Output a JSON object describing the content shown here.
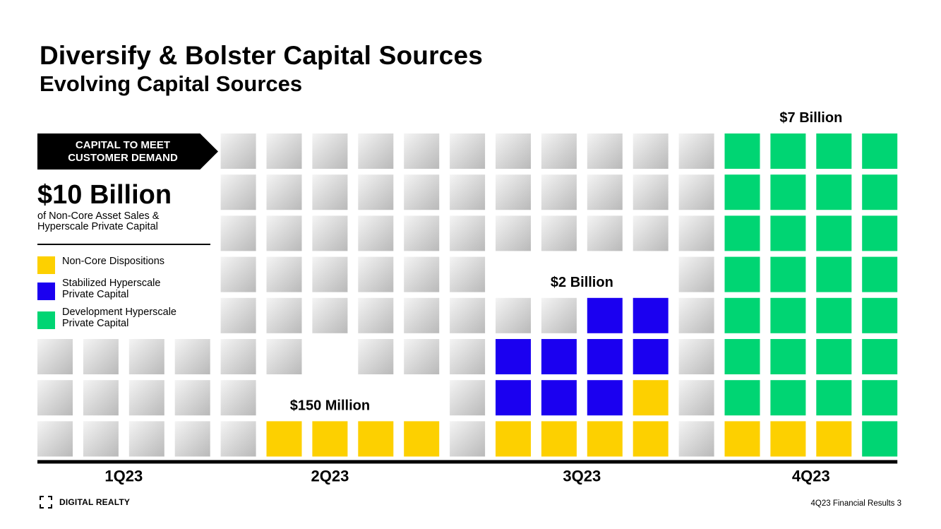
{
  "slide": {
    "title": "Diversify & Bolster Capital Sources",
    "subtitle": "Evolving Capital Sources"
  },
  "callout": {
    "badge_text": "CAPITAL TO MEET\nCUSTOMER DEMAND",
    "amount": "$10 Billion",
    "description_line1": "of Non-Core Asset Sales &",
    "description_line2": "Hyperscale Private Capital"
  },
  "legend": [
    {
      "label_line1": "Non-Core Dispositions",
      "label_line2": "",
      "color": "#FDD000"
    },
    {
      "label_line1": "Stabilized Hyperscale",
      "label_line2": "Private Capital",
      "color": "#1B00F0"
    },
    {
      "label_line1": "Development Hyperscale",
      "label_line2": "Private Capital",
      "color": "#00D573"
    }
  ],
  "chart_data": {
    "type": "waffle",
    "title": "Evolving Capital Sources",
    "rows": 8,
    "columns": 19,
    "colors": {
      "yellow": "#FDD000",
      "blue": "#1B00F0",
      "green": "#00D573",
      "gray_light": "#f4f4f4",
      "gray_dark": "#b9b9b9",
      "axis": "#000000"
    },
    "quarters": [
      {
        "label": "1Q23",
        "columns": [
          0,
          3
        ]
      },
      {
        "label": "2Q23",
        "columns": [
          4,
          8
        ]
      },
      {
        "label": "3Q23",
        "columns": [
          9,
          14
        ]
      },
      {
        "label": "4Q23",
        "columns": [
          15,
          18
        ]
      }
    ],
    "annotations": [
      {
        "text": "$150 Million",
        "quarter": "2Q23"
      },
      {
        "text": "$2 Billion",
        "quarter": "3Q23"
      },
      {
        "text": "$7 Billion",
        "quarter": "4Q23"
      }
    ],
    "tiles": {
      "yellow": [
        [
          7,
          5
        ],
        [
          7,
          6
        ],
        [
          7,
          7
        ],
        [
          7,
          8
        ],
        [
          7,
          10
        ],
        [
          7,
          11
        ],
        [
          7,
          12
        ],
        [
          7,
          13
        ],
        [
          6,
          13
        ],
        [
          7,
          15
        ],
        [
          7,
          16
        ],
        [
          7,
          17
        ]
      ],
      "blue": [
        [
          4,
          12
        ],
        [
          4,
          13
        ],
        [
          5,
          10
        ],
        [
          5,
          11
        ],
        [
          5,
          12
        ],
        [
          5,
          13
        ],
        [
          6,
          10
        ],
        [
          6,
          11
        ],
        [
          6,
          12
        ]
      ],
      "green": [
        [
          0,
          15
        ],
        [
          0,
          16
        ],
        [
          0,
          17
        ],
        [
          0,
          18
        ],
        [
          1,
          15
        ],
        [
          1,
          16
        ],
        [
          1,
          17
        ],
        [
          1,
          18
        ],
        [
          2,
          15
        ],
        [
          2,
          16
        ],
        [
          2,
          17
        ],
        [
          2,
          18
        ],
        [
          3,
          15
        ],
        [
          3,
          16
        ],
        [
          3,
          17
        ],
        [
          3,
          18
        ],
        [
          4,
          15
        ],
        [
          4,
          16
        ],
        [
          4,
          17
        ],
        [
          4,
          18
        ],
        [
          5,
          15
        ],
        [
          5,
          16
        ],
        [
          5,
          17
        ],
        [
          5,
          18
        ],
        [
          6,
          15
        ],
        [
          6,
          16
        ],
        [
          6,
          17
        ],
        [
          6,
          18
        ],
        [
          7,
          18
        ]
      ],
      "gray": [
        [
          0,
          4
        ],
        [
          0,
          5
        ],
        [
          0,
          6
        ],
        [
          0,
          7
        ],
        [
          0,
          8
        ],
        [
          0,
          9
        ],
        [
          0,
          10
        ],
        [
          0,
          11
        ],
        [
          0,
          12
        ],
        [
          0,
          13
        ],
        [
          0,
          14
        ],
        [
          1,
          4
        ],
        [
          1,
          5
        ],
        [
          1,
          6
        ],
        [
          1,
          7
        ],
        [
          1,
          8
        ],
        [
          1,
          9
        ],
        [
          1,
          10
        ],
        [
          1,
          11
        ],
        [
          1,
          12
        ],
        [
          1,
          13
        ],
        [
          1,
          14
        ],
        [
          2,
          4
        ],
        [
          2,
          5
        ],
        [
          2,
          6
        ],
        [
          2,
          7
        ],
        [
          2,
          8
        ],
        [
          2,
          9
        ],
        [
          2,
          10
        ],
        [
          2,
          11
        ],
        [
          2,
          12
        ],
        [
          2,
          13
        ],
        [
          2,
          14
        ],
        [
          3,
          4
        ],
        [
          3,
          5
        ],
        [
          3,
          6
        ],
        [
          3,
          7
        ],
        [
          3,
          8
        ],
        [
          3,
          9
        ],
        [
          3,
          14
        ],
        [
          4,
          4
        ],
        [
          4,
          5
        ],
        [
          4,
          6
        ],
        [
          4,
          7
        ],
        [
          4,
          8
        ],
        [
          4,
          9
        ],
        [
          4,
          10
        ],
        [
          4,
          11
        ],
        [
          4,
          14
        ],
        [
          5,
          0
        ],
        [
          5,
          1
        ],
        [
          5,
          2
        ],
        [
          5,
          3
        ],
        [
          5,
          4
        ],
        [
          5,
          5
        ],
        [
          5,
          7
        ],
        [
          5,
          8
        ],
        [
          5,
          9
        ],
        [
          5,
          14
        ],
        [
          6,
          0
        ],
        [
          6,
          1
        ],
        [
          6,
          2
        ],
        [
          6,
          3
        ],
        [
          6,
          4
        ],
        [
          6,
          9
        ],
        [
          6,
          14
        ],
        [
          7,
          0
        ],
        [
          7,
          1
        ],
        [
          7,
          2
        ],
        [
          7,
          3
        ],
        [
          7,
          4
        ],
        [
          7,
          9
        ],
        [
          7,
          14
        ]
      ]
    }
  },
  "footer": {
    "logo_text": "DIGITAL REALTY",
    "page_label": "4Q23 Financial Results  3"
  }
}
